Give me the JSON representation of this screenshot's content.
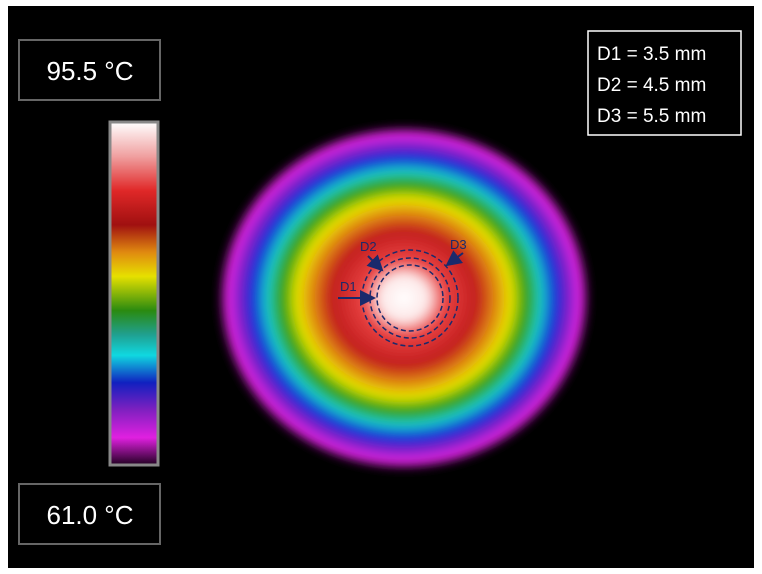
{
  "scale": {
    "max": "95.5 °C",
    "min": "61.0 °C"
  },
  "legend": [
    "D1 = 3.5 mm",
    "D2 = 4.5 mm",
    "D3 = 5.5 mm"
  ],
  "labels": [
    "D1",
    "D2",
    "D3"
  ]
}
